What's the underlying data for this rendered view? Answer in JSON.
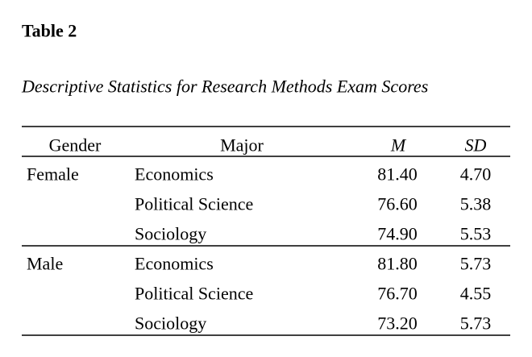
{
  "header": {
    "title": "Table 2",
    "subtitle": "Descriptive Statistics for Research Methods Exam Scores"
  },
  "table": {
    "columns": [
      "Gender",
      "Major",
      "M",
      "SD"
    ],
    "groups": [
      {
        "gender": "Female",
        "rows": [
          [
            "Economics",
            "81.40",
            "4.70"
          ],
          [
            "Political Science",
            "76.60",
            "5.38"
          ],
          [
            "Sociology",
            "74.90",
            "5.53"
          ]
        ]
      },
      {
        "gender": "Male",
        "rows": [
          [
            "Economics",
            "81.80",
            "5.73"
          ],
          [
            "Political Science",
            "76.70",
            "4.55"
          ],
          [
            "Sociology",
            "73.20",
            "5.73"
          ]
        ]
      }
    ]
  }
}
